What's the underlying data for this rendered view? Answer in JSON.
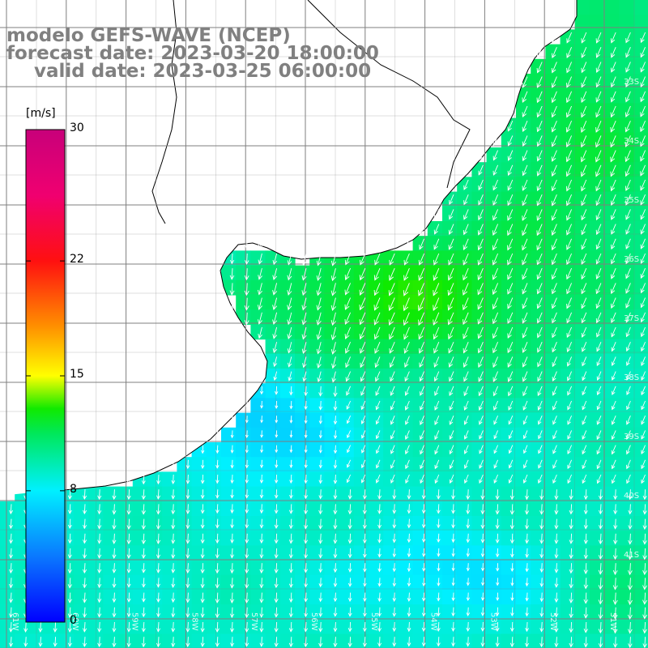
{
  "title": {
    "model": "modelo GEFS-WAVE (NCEP)",
    "forecast": "forecast date: 2023-03-20 18:00:00",
    "valid": "valid date: 2023-03-25 06:00:00"
  },
  "colorbar": {
    "unit": "[m/s]",
    "ticks": [
      "30",
      "22",
      "15",
      "8",
      "0"
    ],
    "tick_values": [
      30,
      22,
      15,
      8,
      0
    ],
    "range": [
      0,
      30
    ],
    "gradient_colors": [
      {
        "value": 0,
        "color": "#0000ff"
      },
      {
        "value": 4,
        "color": "#0a78ff"
      },
      {
        "value": 8,
        "color": "#00f0ff"
      },
      {
        "value": 11.5,
        "color": "#00e85a"
      },
      {
        "value": 13,
        "color": "#10ea00"
      },
      {
        "value": 15,
        "color": "#ffff00"
      },
      {
        "value": 18,
        "color": "#ff9000"
      },
      {
        "value": 22,
        "color": "#ff1010"
      },
      {
        "value": 26,
        "color": "#f00070"
      },
      {
        "value": 30,
        "color": "#c8007a"
      }
    ]
  },
  "lon_labels": [
    "61W",
    "60W",
    "59W",
    "58W",
    "57W",
    "56W",
    "55W",
    "54W",
    "53W",
    "52W",
    "51W"
  ],
  "lat_labels": [
    "33S",
    "34S",
    "35S",
    "36S",
    "37S",
    "38S",
    "39S",
    "40S",
    "41S"
  ],
  "colors": {
    "land": "#ffffff",
    "grid": "#7f7f7f",
    "coast": "#000000",
    "arrow": "#ffffff",
    "title": "#808080"
  }
}
